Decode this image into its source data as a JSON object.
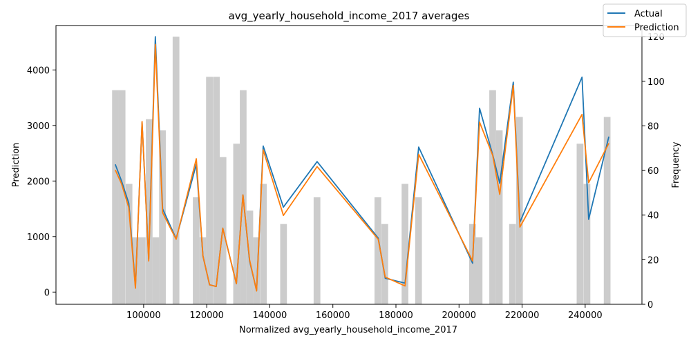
{
  "chart_data": {
    "type": "line",
    "title": "avg_yearly_household_income_2017 averages",
    "xlabel": "Normalized avg_yearly_household_income_2017",
    "ylabel": "Prediction",
    "y2label": "Frequency",
    "xlim": [
      72200,
      258000
    ],
    "ylim": [
      -220,
      4800
    ],
    "y2lim": [
      0,
      125
    ],
    "x_ticks": [
      100000,
      120000,
      140000,
      160000,
      180000,
      200000,
      220000,
      240000
    ],
    "y_ticks": [
      0,
      1000,
      2000,
      3000,
      4000
    ],
    "y2_ticks": [
      0,
      20,
      40,
      60,
      80,
      100,
      120
    ],
    "legend_position": "top-right",
    "series": [
      {
        "name": "Actual",
        "color": "#1f77b4",
        "points": [
          [
            91000,
            2300
          ],
          [
            93000,
            2000
          ],
          [
            95300,
            1600
          ],
          [
            97400,
            100
          ],
          [
            99500,
            3050
          ],
          [
            101600,
            600
          ],
          [
            103700,
            4600
          ],
          [
            106000,
            1500
          ],
          [
            110300,
            960
          ],
          [
            116700,
            2300
          ],
          [
            118800,
            650
          ],
          [
            120900,
            130
          ],
          [
            123000,
            100
          ],
          [
            125100,
            1150
          ],
          [
            129400,
            150
          ],
          [
            131500,
            1750
          ],
          [
            133600,
            560
          ],
          [
            135800,
            30
          ],
          [
            137900,
            2630
          ],
          [
            144300,
            1530
          ],
          [
            155000,
            2350
          ],
          [
            174400,
            970
          ],
          [
            176600,
            250
          ],
          [
            182900,
            160
          ],
          [
            187200,
            2610
          ],
          [
            204300,
            520
          ],
          [
            206500,
            3310
          ],
          [
            210700,
            2470
          ],
          [
            212900,
            1960
          ],
          [
            217200,
            3780
          ],
          [
            219300,
            1260
          ],
          [
            239000,
            3870
          ],
          [
            241100,
            1310
          ],
          [
            247500,
            2800
          ]
        ]
      },
      {
        "name": "Prediction",
        "color": "#ff7f0e",
        "points": [
          [
            91000,
            2200
          ],
          [
            93000,
            1950
          ],
          [
            95300,
            1520
          ],
          [
            97400,
            70
          ],
          [
            99500,
            3070
          ],
          [
            101600,
            560
          ],
          [
            103700,
            4460
          ],
          [
            106000,
            1430
          ],
          [
            110300,
            950
          ],
          [
            116700,
            2400
          ],
          [
            118800,
            650
          ],
          [
            120900,
            130
          ],
          [
            123000,
            100
          ],
          [
            125100,
            1150
          ],
          [
            129400,
            150
          ],
          [
            131500,
            1750
          ],
          [
            133600,
            580
          ],
          [
            135800,
            20
          ],
          [
            137900,
            2560
          ],
          [
            144300,
            1380
          ],
          [
            155000,
            2260
          ],
          [
            174400,
            950
          ],
          [
            176600,
            270
          ],
          [
            182900,
            110
          ],
          [
            187200,
            2480
          ],
          [
            204300,
            560
          ],
          [
            206500,
            3060
          ],
          [
            210700,
            2460
          ],
          [
            212900,
            1760
          ],
          [
            217200,
            3720
          ],
          [
            219300,
            1170
          ],
          [
            239000,
            3200
          ],
          [
            241100,
            1970
          ],
          [
            247500,
            2680
          ]
        ]
      }
    ],
    "histogram": {
      "color": "#cccccc",
      "bin_width": 2130,
      "bins": [
        [
          90000,
          96
        ],
        [
          92100,
          96
        ],
        [
          94300,
          54
        ],
        [
          96400,
          30
        ],
        [
          98500,
          30
        ],
        [
          100700,
          83
        ],
        [
          102800,
          30
        ],
        [
          104900,
          78
        ],
        [
          109200,
          120
        ],
        [
          115600,
          48
        ],
        [
          117700,
          30
        ],
        [
          119800,
          102
        ],
        [
          122000,
          102
        ],
        [
          124100,
          66
        ],
        [
          128400,
          72
        ],
        [
          130500,
          96
        ],
        [
          132600,
          42
        ],
        [
          134700,
          30
        ],
        [
          136900,
          54
        ],
        [
          143300,
          36
        ],
        [
          153900,
          48
        ],
        [
          173200,
          48
        ],
        [
          175400,
          36
        ],
        [
          181800,
          54
        ],
        [
          186100,
          48
        ],
        [
          203200,
          36
        ],
        [
          205300,
          30
        ],
        [
          209600,
          96
        ],
        [
          211700,
          78
        ],
        [
          215900,
          36
        ],
        [
          218100,
          84
        ],
        [
          237300,
          72
        ],
        [
          239500,
          54
        ],
        [
          245900,
          84
        ]
      ]
    }
  }
}
